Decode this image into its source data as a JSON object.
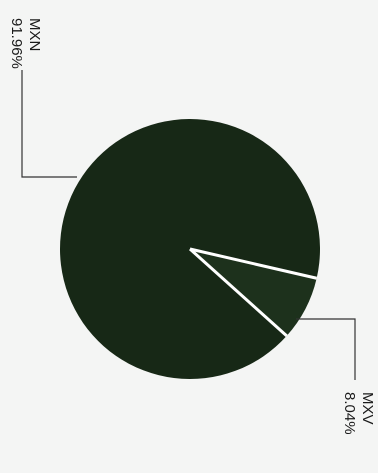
{
  "chart_data": {
    "type": "pie",
    "slices": [
      {
        "label": "MXN",
        "value_text": "91.96%",
        "value": 91.96,
        "color": "#172816"
      },
      {
        "label": "MXV",
        "value_text": "8.04%",
        "value": 8.04,
        "color": "#1d311c"
      }
    ],
    "separator_color": "#ffffff",
    "leader_color": "#333333"
  }
}
